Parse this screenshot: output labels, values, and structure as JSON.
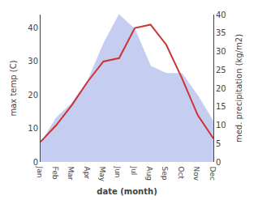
{
  "chart_data": {
    "type": "line",
    "categories": [
      "Jan",
      "Feb",
      "Mar",
      "Apr",
      "May",
      "Jun",
      "Jul",
      "Aug",
      "Sep",
      "Oct",
      "Nov",
      "Dec"
    ],
    "series": [
      {
        "type": "area",
        "axis": "y2",
        "color": "#c5cef0",
        "values": [
          5,
          12,
          16,
          22,
          32,
          40,
          36,
          26,
          24,
          24,
          18,
          11
        ]
      },
      {
        "type": "line",
        "axis": "y",
        "color": "#cc3333",
        "values": [
          6,
          11,
          17,
          24,
          30,
          31,
          40,
          41,
          35,
          25,
          14,
          7
        ]
      }
    ],
    "xlabel": "date (month)",
    "ylabel": "max temp (C)",
    "y2label": "med. precipitation (kg/m2)",
    "ylim": [
      0,
      44
    ],
    "yticks": [
      0,
      10,
      20,
      30,
      40
    ],
    "y2lim": [
      0,
      40
    ],
    "y2ticks": [
      0,
      5,
      10,
      15,
      20,
      25,
      30,
      35,
      40
    ],
    "grid": false
  }
}
